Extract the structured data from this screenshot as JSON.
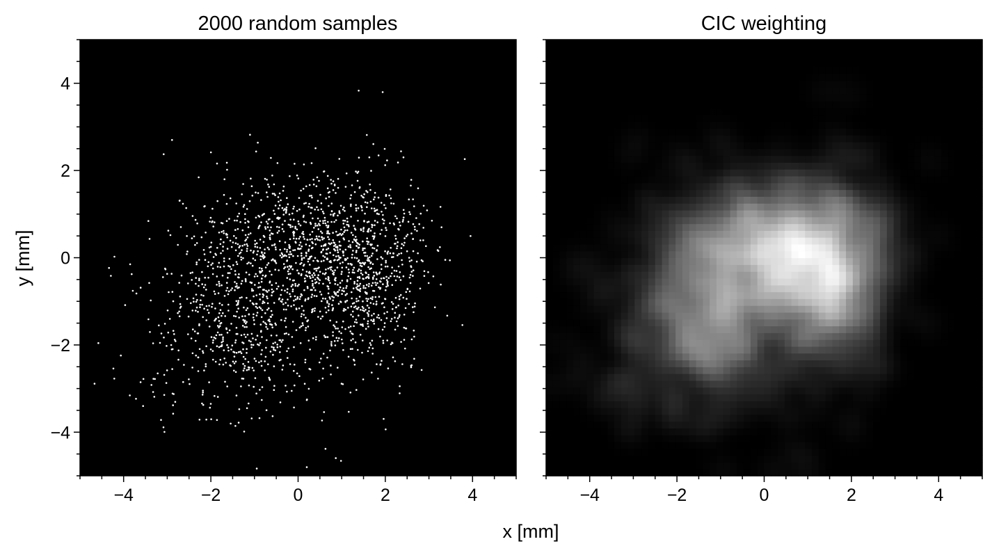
{
  "figure": {
    "shared_xlabel": "x [mm]",
    "shared_ylabel": "y [mm]"
  },
  "chart_data": [
    {
      "type": "scatter",
      "title": "2000 random samples",
      "xlabel": "x [mm]",
      "ylabel": "y [mm]",
      "xlim": [
        -5,
        5
      ],
      "ylim": [
        -5,
        5
      ],
      "xticks": [
        "−4",
        "−2",
        "0",
        "2",
        "4"
      ],
      "yticks": [
        "4",
        "2",
        "0",
        "−2",
        "−4"
      ],
      "grid": false,
      "background_color": "#000000",
      "marker_color": "#ffffff",
      "point_count": 2000,
      "distribution": {
        "components": [
          {
            "weight": 0.38,
            "mean_x": -1.3,
            "mean_y": -1.2,
            "sd_x": 1.1,
            "sd_y": 1.2
          },
          {
            "weight": 0.32,
            "mean_x": 0.2,
            "mean_y": 0.3,
            "sd_x": 1.0,
            "sd_y": 0.9
          },
          {
            "weight": 0.3,
            "mean_x": 1.6,
            "mean_y": -0.4,
            "sd_x": 0.7,
            "sd_y": 1.1
          }
        ]
      }
    },
    {
      "type": "heatmap",
      "title": "CIC weighting",
      "xlabel": "x [mm]",
      "xlim": [
        -5,
        5
      ],
      "ylim": [
        -5,
        5
      ],
      "xticks": [
        "−4",
        "−2",
        "0",
        "2",
        "4"
      ],
      "grid": false,
      "colormap": "grayscale",
      "grid_cells": 64,
      "background_color": "#000000"
    }
  ]
}
